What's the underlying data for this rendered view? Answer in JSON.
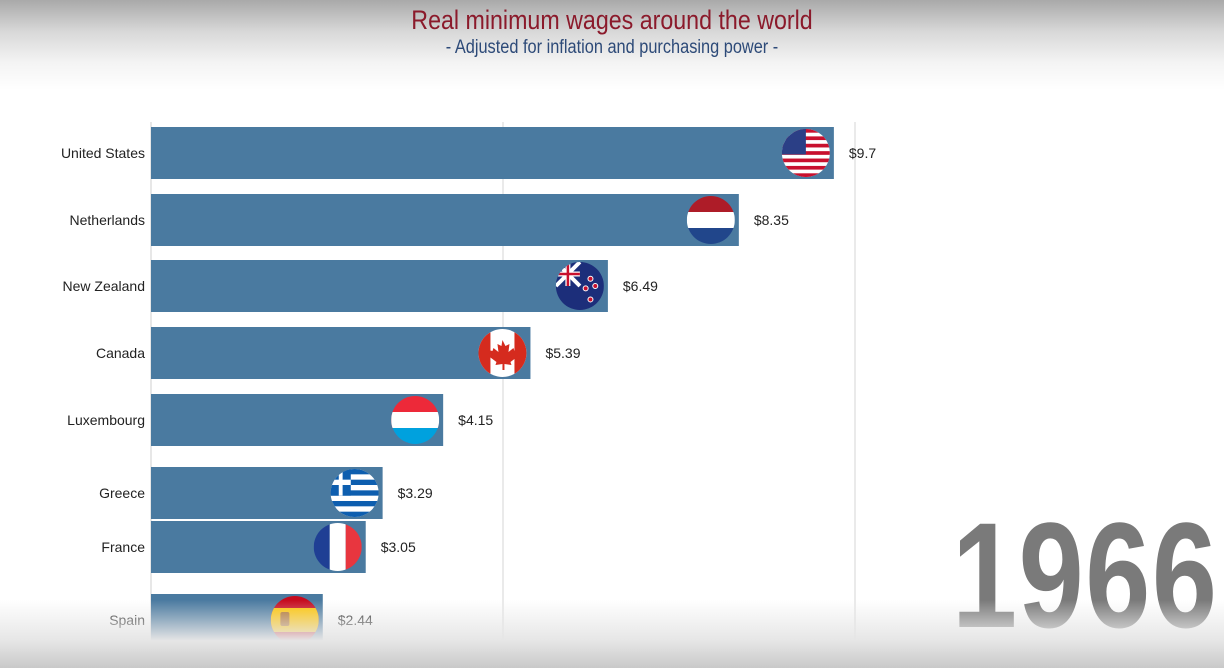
{
  "title": "Real minimum wages around the world",
  "subtitle": "- Adjusted for inflation and purchasing power -",
  "year": "1966",
  "chart_data": {
    "type": "bar",
    "orientation": "horizontal",
    "title": "Real minimum wages around the world",
    "subtitle": "- Adjusted for inflation and purchasing power -",
    "categories": [
      "United States",
      "Netherlands",
      "New Zealand",
      "Canada",
      "Luxembourg",
      "Greece",
      "France",
      "Spain"
    ],
    "values": [
      9.7,
      8.35,
      6.49,
      5.39,
      4.15,
      3.29,
      3.05,
      2.44
    ],
    "labels": [
      "$9.7",
      "$8.35",
      "$6.49",
      "$5.39",
      "$4.15",
      "$3.29",
      "$3.05",
      "$2.44"
    ],
    "flags": [
      "us-flag-icon",
      "netherlands-flag-icon",
      "new-zealand-flag-icon",
      "canada-flag-icon",
      "luxembourg-flag-icon",
      "greece-flag-icon",
      "france-flag-icon",
      "spain-flag-icon"
    ],
    "gridlines": [
      5,
      10
    ],
    "grid": true,
    "tick_labels_shown": false,
    "xlim": [
      0,
      10
    ],
    "bar_color": "#4a7aa0",
    "title_color": "#8b1a2b",
    "subtitle_color": "#2d4a78"
  }
}
